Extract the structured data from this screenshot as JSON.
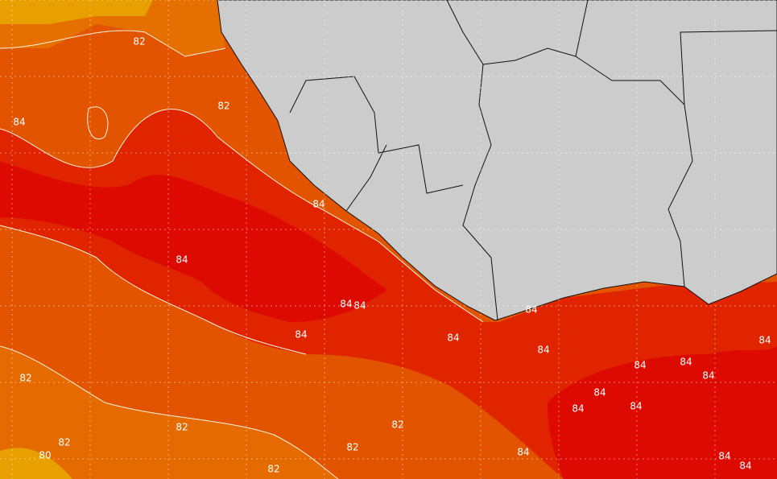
{
  "contour_labels": [
    "82",
    "84",
    "82",
    "84",
    "84",
    "84",
    "84",
    "84",
    "84",
    "84",
    "84",
    "84",
    "84",
    "84",
    "84",
    "84",
    "84",
    "82",
    "82",
    "82",
    "82",
    "82",
    "80",
    "82",
    "84",
    "84",
    "84",
    "84"
  ]
}
